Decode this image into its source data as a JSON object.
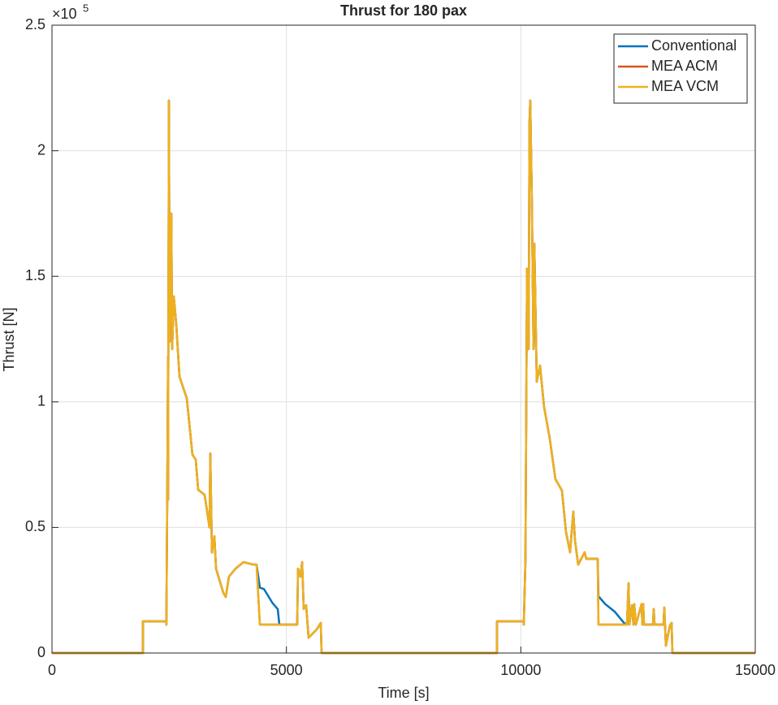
{
  "chart_data": {
    "type": "line",
    "title": "Thrust for 180 pax",
    "x_label": "Time [s]",
    "y_label": "Thrust [N]",
    "y_multiplier": "×10",
    "y_multiplier_exponent": "5",
    "xlim": [
      0,
      15000
    ],
    "xticks": [
      0,
      5000,
      10000,
      15000
    ],
    "ylim": [
      0,
      250000
    ],
    "yticks": [
      0,
      {
        "value": 50000,
        "label": "0.5"
      },
      {
        "value": 100000,
        "label": "1"
      },
      {
        "value": 150000,
        "label": "1.5"
      },
      {
        "value": 200000,
        "label": "2"
      },
      {
        "value": 250000,
        "label": "2.5"
      }
    ],
    "grid": true,
    "legend": "northeast",
    "series": [
      {
        "name": "Conventional",
        "color": "#0072BD",
        "x": [
          0,
          1940,
          1940,
          2440,
          2440,
          2460,
          2475,
          2476,
          2494,
          2510,
          2530,
          2546,
          2563,
          2598,
          2650,
          2720,
          2875,
          2996,
          3066,
          3118,
          3256,
          3360,
          3377,
          3412,
          3464,
          3499,
          3654,
          3706,
          3775,
          3914,
          4087,
          4295,
          4364,
          4434,
          4520,
          4700,
          4815,
          4850,
          5230,
          5248,
          5300,
          5335,
          5370,
          5421,
          5473,
          5646,
          5733,
          5750,
          9491,
          9491,
          10063,
          10063,
          10098,
          10132,
          10167,
          10184,
          10201,
          10236,
          10270,
          10288,
          10340,
          10409,
          10496,
          10617,
          10738,
          10877,
          10963,
          11050,
          11119,
          11154,
          11223,
          11362,
          11397,
          11639,
          11656,
          11800,
          12000,
          12200,
          12263,
          12298,
          12315,
          12367,
          12402,
          12419,
          12454,
          12575,
          12593,
          12610,
          12627,
          12818,
          12835,
          12852,
          13043,
          13060,
          13094,
          13181,
          13216,
          13233,
          15000
        ],
        "values": [
          0,
          0,
          12600,
          12600,
          11300,
          66000,
          118000,
          61000,
          220000,
          124000,
          163000,
          175000,
          121000,
          142000,
          131000,
          110000,
          101500,
          79000,
          77000,
          65000,
          63000,
          50000,
          79500,
          40000,
          46500,
          33600,
          24000,
          22300,
          30400,
          33600,
          36200,
          35200,
          35200,
          26000,
          25500,
          20000,
          17500,
          11300,
          11300,
          33600,
          30400,
          36200,
          17500,
          19000,
          6100,
          9400,
          12000,
          0,
          0,
          12600,
          12600,
          11300,
          36900,
          153000,
          121000,
          211000,
          220000,
          179000,
          121000,
          163000,
          108000,
          114500,
          98000,
          85400,
          69200,
          64700,
          48200,
          40100,
          56300,
          45000,
          35200,
          40100,
          37500,
          37500,
          22600,
          19500,
          16500,
          12000,
          11300,
          27800,
          11300,
          19000,
          11300,
          19500,
          11300,
          19500,
          11300,
          19500,
          11300,
          11300,
          17500,
          11300,
          11300,
          18100,
          2900,
          11000,
          12000,
          0,
          0
        ]
      },
      {
        "name": "MEA ACM",
        "color": "#D95319",
        "x": [
          0,
          1940,
          1940,
          2440,
          2440,
          2460,
          2475,
          2476,
          2494,
          2510,
          2530,
          2546,
          2563,
          2598,
          2650,
          2720,
          2875,
          2996,
          3066,
          3118,
          3256,
          3360,
          3377,
          3412,
          3464,
          3499,
          3654,
          3706,
          3775,
          3914,
          4087,
          4295,
          4364,
          4434,
          5230,
          5248,
          5300,
          5335,
          5370,
          5421,
          5473,
          5646,
          5733,
          5750,
          9491,
          9491,
          10063,
          10063,
          10098,
          10132,
          10167,
          10184,
          10201,
          10236,
          10270,
          10288,
          10340,
          10409,
          10496,
          10617,
          10738,
          10877,
          10963,
          11050,
          11119,
          11154,
          11223,
          11362,
          11397,
          11639,
          11656,
          12263,
          12298,
          12315,
          12367,
          12402,
          12419,
          12454,
          12575,
          12593,
          12610,
          12627,
          12818,
          12835,
          12852,
          13043,
          13060,
          13094,
          13181,
          13216,
          13233,
          15000
        ],
        "values": [
          0,
          0,
          12600,
          12600,
          11300,
          66000,
          118000,
          61000,
          220000,
          124000,
          163000,
          175000,
          121000,
          142000,
          131000,
          110000,
          101500,
          79000,
          77000,
          65000,
          63000,
          50000,
          79500,
          40000,
          46500,
          33600,
          24000,
          22300,
          30400,
          33600,
          36200,
          35200,
          35200,
          11300,
          11300,
          33600,
          30400,
          36200,
          17500,
          19000,
          6100,
          9400,
          12000,
          0,
          0,
          12600,
          12600,
          11300,
          36900,
          153000,
          121000,
          211000,
          220000,
          179000,
          121000,
          163000,
          108000,
          114500,
          98000,
          85400,
          69200,
          64700,
          48200,
          40100,
          56300,
          45000,
          35200,
          40100,
          37500,
          37500,
          11300,
          11300,
          27800,
          11300,
          19000,
          11300,
          19500,
          11300,
          19500,
          11300,
          19500,
          11300,
          11300,
          17500,
          11300,
          11300,
          18100,
          2900,
          11000,
          12000,
          0,
          0
        ]
      },
      {
        "name": "MEA VCM",
        "color": "#EDB120",
        "x": [
          0,
          1940,
          1940,
          2440,
          2440,
          2460,
          2475,
          2476,
          2494,
          2510,
          2530,
          2546,
          2563,
          2598,
          2650,
          2720,
          2875,
          2996,
          3066,
          3118,
          3256,
          3360,
          3377,
          3412,
          3464,
          3499,
          3654,
          3706,
          3775,
          3914,
          4087,
          4295,
          4364,
          4434,
          5230,
          5248,
          5300,
          5335,
          5370,
          5421,
          5473,
          5646,
          5733,
          5750,
          9491,
          9491,
          10063,
          10063,
          10098,
          10132,
          10167,
          10184,
          10201,
          10236,
          10270,
          10288,
          10340,
          10409,
          10496,
          10617,
          10738,
          10877,
          10963,
          11050,
          11119,
          11154,
          11223,
          11362,
          11397,
          11639,
          11656,
          12263,
          12298,
          12315,
          12367,
          12402,
          12419,
          12454,
          12575,
          12593,
          12610,
          12627,
          12818,
          12835,
          12852,
          13043,
          13060,
          13094,
          13181,
          13216,
          13233,
          15000
        ],
        "values": [
          0,
          0,
          12600,
          12600,
          11300,
          66000,
          118000,
          61000,
          220000,
          124000,
          163000,
          175000,
          121000,
          142000,
          131000,
          110000,
          101500,
          79000,
          77000,
          65000,
          63000,
          50000,
          79500,
          40000,
          46500,
          33600,
          24000,
          22300,
          30400,
          33600,
          36200,
          35200,
          35200,
          11300,
          11300,
          33600,
          30400,
          36200,
          17500,
          19000,
          6100,
          9400,
          12000,
          0,
          0,
          12600,
          12600,
          11300,
          36900,
          153000,
          121000,
          211000,
          220000,
          179000,
          121000,
          163000,
          108000,
          114500,
          98000,
          85400,
          69200,
          64700,
          48200,
          40100,
          56300,
          45000,
          35200,
          40100,
          37500,
          37500,
          11300,
          11300,
          27800,
          11300,
          19000,
          11300,
          19500,
          11300,
          19500,
          11300,
          19500,
          11300,
          11300,
          17500,
          11300,
          11300,
          18100,
          2900,
          11000,
          12000,
          0,
          0
        ]
      }
    ]
  }
}
